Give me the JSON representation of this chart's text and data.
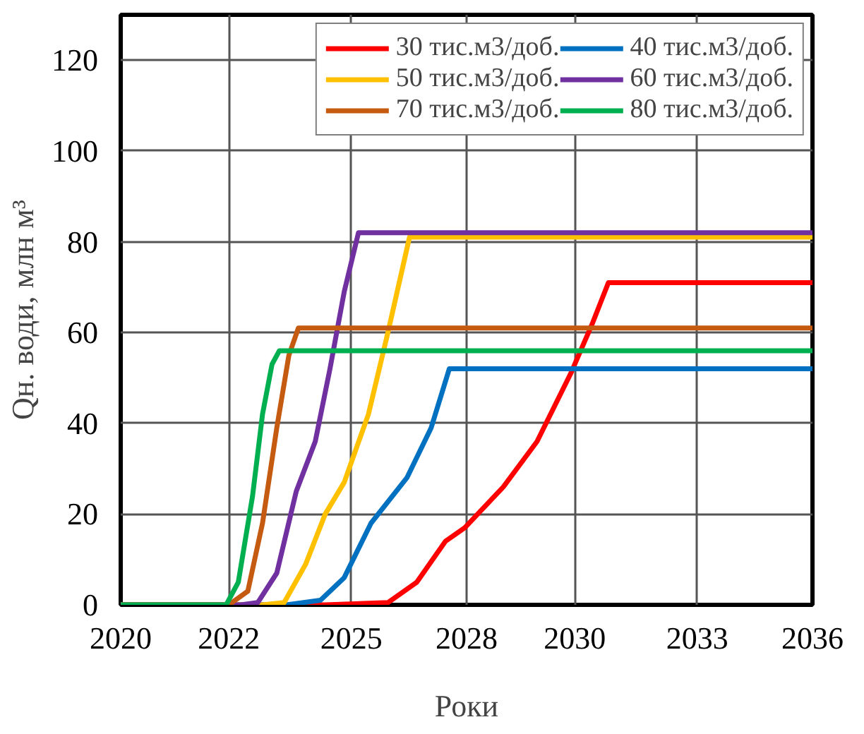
{
  "chart_data": {
    "type": "line",
    "xlabel": "Роки",
    "ylabel": "Qн. води, млн м³",
    "xlim": [
      2020,
      2036
    ],
    "ylim": [
      0,
      130
    ],
    "xticks": [
      {
        "value": 2020,
        "label": "2020"
      },
      {
        "value": 2022.5,
        "label": "2022"
      },
      {
        "value": 2025.333,
        "label": "2025"
      },
      {
        "value": 2028,
        "label": "2028"
      },
      {
        "value": 2030.5,
        "label": "2030"
      },
      {
        "value": 2033.333,
        "label": "2033"
      },
      {
        "value": 2036,
        "label": "2036"
      }
    ],
    "yticks": [
      0,
      20,
      40,
      60,
      80,
      100,
      120
    ],
    "grid": true,
    "legend": "top right",
    "marker": "none",
    "line_style": "solid",
    "series": [
      {
        "name": "30 тис.м3/доб.",
        "color": "#ff0000",
        "x": [
          2020,
          2024.73,
          2026.18,
          2026.85,
          2027.51,
          2027.96,
          2028.85,
          2029.63,
          2030.41,
          2030.91,
          2031.28,
          2036
        ],
        "values": [
          0,
          0,
          0.5,
          5,
          14,
          17,
          26,
          36,
          51,
          62,
          71,
          71
        ]
      },
      {
        "name": "40 тис.м3/доб.",
        "color": "#0070c0",
        "x": [
          2020,
          2023.84,
          2024.62,
          2025.17,
          2025.79,
          2026.62,
          2027.18,
          2027.6,
          2036
        ],
        "values": [
          0,
          0,
          1,
          6,
          18,
          28,
          39,
          52,
          52
        ]
      },
      {
        "name": "50 тис.м3/доб.",
        "color": "#ffc000",
        "x": [
          2020,
          2023.28,
          2023.78,
          2024.28,
          2024.73,
          2025.17,
          2025.73,
          2026.18,
          2026.68,
          2036
        ],
        "values": [
          0,
          0,
          0.5,
          9,
          20,
          27,
          42,
          60,
          81,
          81
        ]
      },
      {
        "name": "60 тис.м3/доб.",
        "color": "#7030a0",
        "x": [
          2020,
          2022.78,
          2023.17,
          2023.61,
          2024.06,
          2024.5,
          2024.84,
          2025.17,
          2025.5,
          2036
        ],
        "values": [
          0,
          0,
          0.5,
          7,
          25,
          36,
          52,
          69,
          82,
          82
        ]
      },
      {
        "name": "70 тис.м3/доб.",
        "color": "#c55a11",
        "x": [
          2020,
          2022.5,
          2022.94,
          2023.28,
          2023.61,
          2023.89,
          2024.11,
          2036
        ],
        "values": [
          0,
          0,
          3,
          18,
          39,
          55,
          61,
          61
        ]
      },
      {
        "name": "80 тис.м3/доб.",
        "color": "#00b050",
        "x": [
          2020,
          2022.44,
          2022.72,
          2023.05,
          2023.28,
          2023.5,
          2023.67,
          2036
        ],
        "values": [
          0,
          0,
          5,
          24,
          42,
          53,
          56,
          56
        ]
      }
    ]
  }
}
